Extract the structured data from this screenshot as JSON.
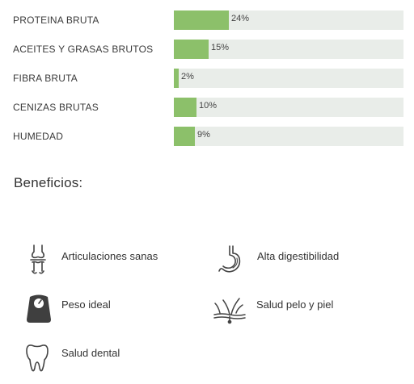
{
  "nutrients": [
    {
      "label": "PROTEINA BRUTA",
      "value": "24%",
      "fraction": 0.24
    },
    {
      "label": "ACEITES Y GRASAS BRUTOS",
      "value": "15%",
      "fraction": 0.15
    },
    {
      "label": "FIBRA BRUTA",
      "value": "2%",
      "fraction": 0.02
    },
    {
      "label": "CENIZAS BRUTAS",
      "value": "10%",
      "fraction": 0.1
    },
    {
      "label": "HUMEDAD",
      "value": "9%",
      "fraction": 0.09
    }
  ],
  "colors": {
    "bar_fill": "#8cc06a",
    "bar_track": "#e9ede9",
    "icon": "#444444"
  },
  "benefits_title": "Beneficios:",
  "benefits": [
    {
      "label": "Articulaciones sanas",
      "icon": "joint-icon"
    },
    {
      "label": "Alta digestibilidad",
      "icon": "stomach-icon"
    },
    {
      "label": "Peso ideal",
      "icon": "scale-icon"
    },
    {
      "label": "Salud pelo y piel",
      "icon": "hair-skin-icon"
    },
    {
      "label": "Salud dental",
      "icon": "tooth-icon"
    }
  ]
}
